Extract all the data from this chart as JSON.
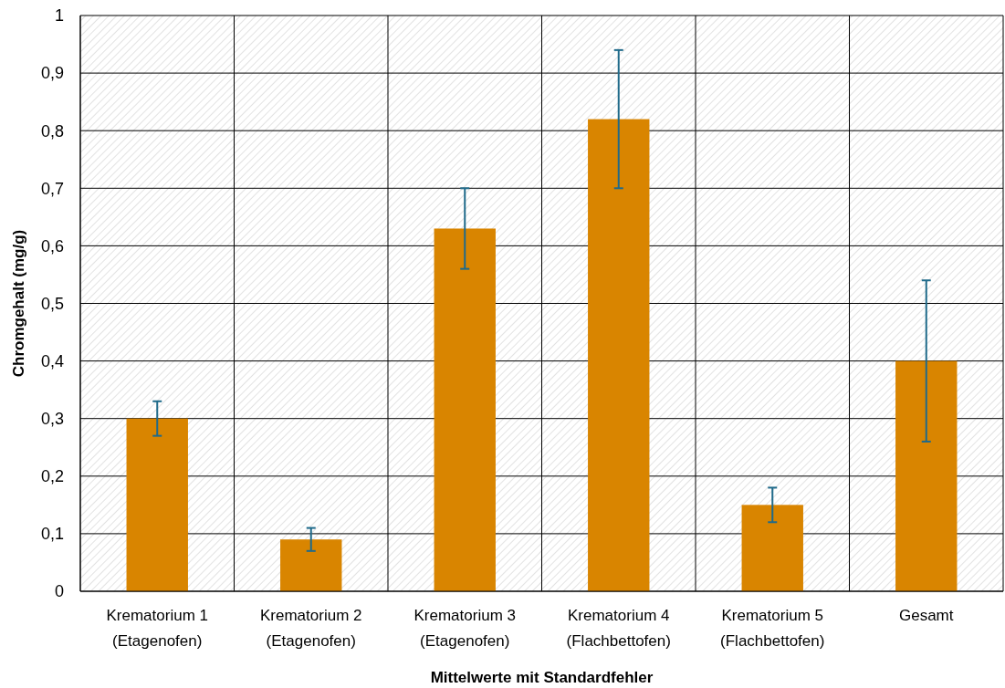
{
  "chart_data": {
    "type": "bar",
    "xlabel": "Mittelwerte mit Standardfehler",
    "ylabel": "Chromgehalt (mg/g)",
    "categories": [
      "Krematorium 1\n(Etagenofen)",
      "Krematorium 2\n(Etagenofen)",
      "Krematorium 3\n(Etagenofen)",
      "Krematorium 4\n(Flachbettofen)",
      "Krematorium 5\n(Flachbettofen)",
      "Gesamt"
    ],
    "values": [
      0.3,
      0.09,
      0.63,
      0.82,
      0.15,
      0.4
    ],
    "errors": [
      0.03,
      0.02,
      0.07,
      0.12,
      0.03,
      0.14
    ],
    "color": "#d98500",
    "ylim": [
      0,
      1
    ],
    "yticks": [
      0,
      {
        "value": 0.1,
        "label": "0,1"
      },
      {
        "value": 0.2,
        "label": "0,2"
      },
      {
        "value": 0.3,
        "label": "0,3"
      },
      {
        "value": 0.4,
        "label": "0,4"
      },
      {
        "value": 0.5,
        "label": "0,5"
      },
      {
        "value": 0.6,
        "label": "0,6"
      },
      {
        "value": 0.7,
        "label": "0,7"
      },
      {
        "value": 0.8,
        "label": "0,8"
      },
      {
        "value": 0.9,
        "label": "0,9"
      },
      1
    ],
    "grid": true
  }
}
